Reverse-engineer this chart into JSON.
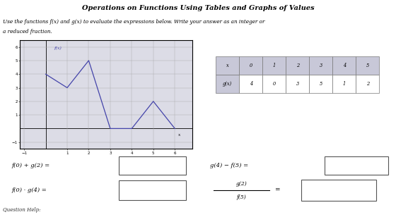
{
  "title": "Operations on Functions Using Tables and Graphs of Values",
  "subtitle_line1": "Use the functions f(x) and g(x) to evaluate the expressions below. Write your answer as an integer or",
  "subtitle_line2": "a reduced fraction.",
  "fx_points": [
    [
      0,
      4
    ],
    [
      1,
      3
    ],
    [
      2,
      5
    ],
    [
      3,
      0
    ],
    [
      4,
      0
    ],
    [
      5,
      2
    ],
    [
      6,
      0
    ]
  ],
  "gx_x": [
    0,
    1,
    2,
    3,
    4,
    5
  ],
  "gx_vals": [
    4,
    0,
    3,
    5,
    1,
    2
  ],
  "expr1": "f(0) + g(2) =",
  "expr2": "g(4) − f(5) =",
  "expr3": "f(0) · g(4) =",
  "expr4_num": "g(2)",
  "expr4_den": "f(5)",
  "question_help": "Question Help:",
  "plot_line_color": "#4444aa",
  "graph_bg": "#dcdce6",
  "panel_bg": "#d8d8e2",
  "grid_color": "#aaaaaa",
  "border_color": "#888888",
  "cell_header_bg": "#c8c8d8",
  "cell_white_bg": "#ffffff",
  "white_bg": "#ffffff",
  "light_bg": "#f0f0f4",
  "xlim": [
    -1.2,
    6.8
  ],
  "ylim": [
    -1.5,
    6.5
  ],
  "xtick_vals": [
    -1,
    1,
    2,
    3,
    4,
    5,
    6
  ],
  "ytick_vals": [
    -1,
    1,
    2,
    3,
    4,
    5,
    6
  ]
}
